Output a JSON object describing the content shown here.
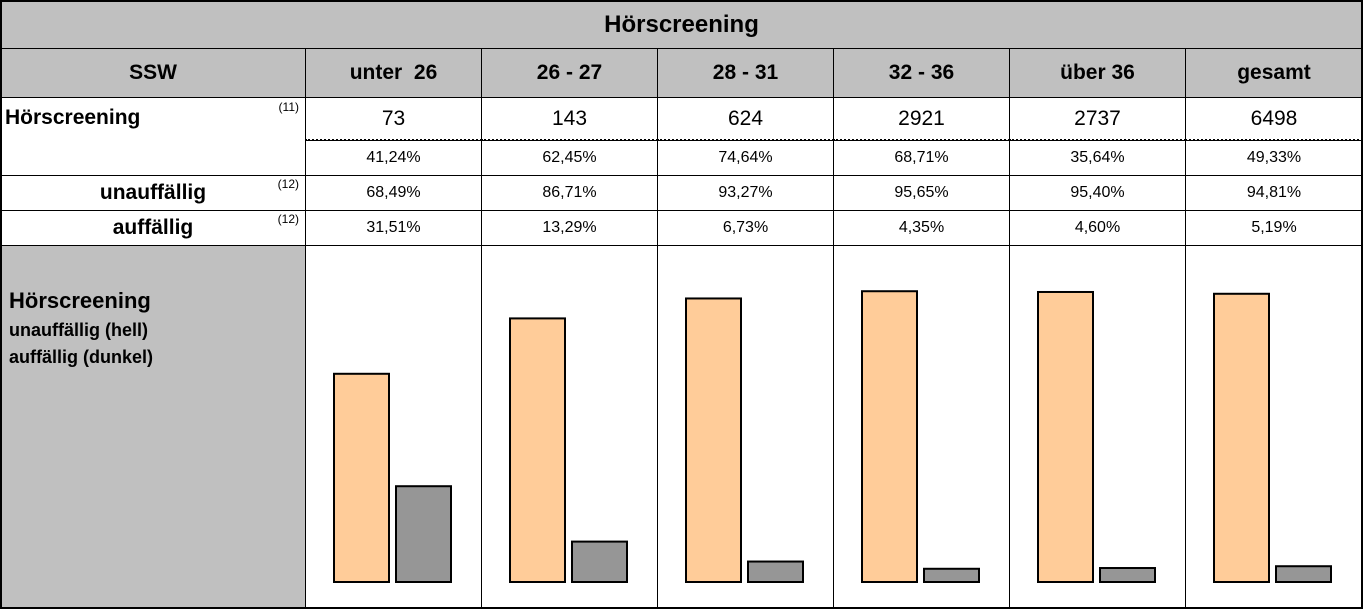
{
  "title": "Hörscreening",
  "header": [
    "SSW",
    "unter  26",
    "26 - 27",
    "28 - 31",
    "32 - 36",
    "über 36",
    "gesamt"
  ],
  "rows": [
    {
      "label": "Hörscreening",
      "note": "(11)",
      "values": [
        "73",
        "143",
        "624",
        "2921",
        "2737",
        "6498"
      ],
      "shares": [
        "41,24%",
        "62,45%",
        "74,64%",
        "68,71%",
        "35,64%",
        "49,33%"
      ]
    },
    {
      "label": "unauffällig",
      "note": "(12)",
      "values": [
        "68,49%",
        "86,71%",
        "93,27%",
        "95,65%",
        "95,40%",
        "94,81%"
      ]
    },
    {
      "label": "auffällig",
      "note": "(12)",
      "values": [
        "31,51%",
        "13,29%",
        "6,73%",
        "4,35%",
        "4,60%",
        "5,19%"
      ]
    }
  ],
  "chart": {
    "label": "Hörscreening",
    "lines": [
      "unauffällig (hell)",
      "auffällig (dunkel)"
    ],
    "colors": [
      "#ffcc99",
      "#969696"
    ]
  }
}
